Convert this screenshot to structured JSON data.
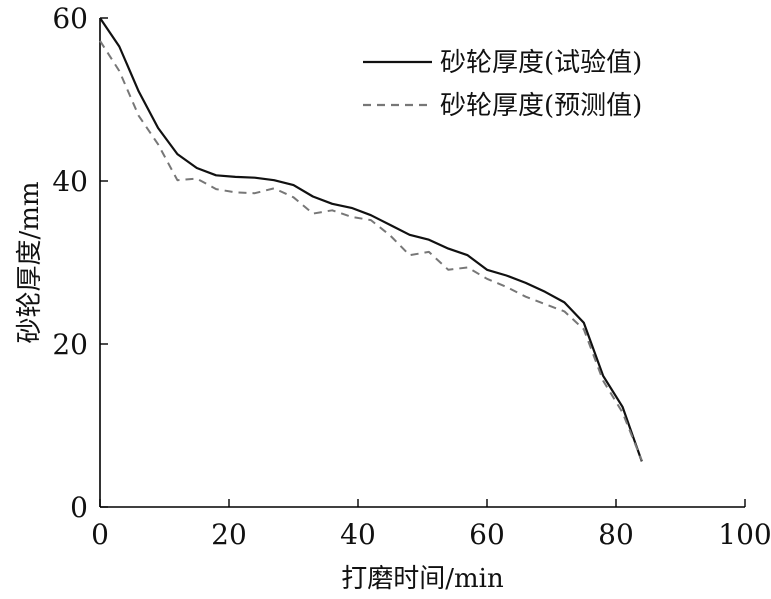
{
  "chart_data": {
    "type": "line",
    "title": "",
    "xlabel": "打磨时间/min",
    "ylabel": "砂轮厚度/mm",
    "xlim": [
      0,
      100
    ],
    "ylim": [
      0,
      60
    ],
    "xticks": [
      0,
      20,
      40,
      60,
      80,
      100
    ],
    "yticks": [
      0,
      20,
      40,
      60
    ],
    "grid": false,
    "legend_position": "top-right",
    "series": [
      {
        "name": "砂轮厚度(试验值)",
        "style": "solid",
        "color": "#111111",
        "x": [
          0,
          3,
          6,
          9,
          12,
          15,
          18,
          21,
          24,
          27,
          30,
          33,
          36,
          39,
          42,
          45,
          48,
          51,
          54,
          57,
          60,
          63,
          66,
          69,
          72,
          75,
          78,
          81,
          84
        ],
        "y": [
          60,
          56.5,
          51,
          46.5,
          43.3,
          41.6,
          40.7,
          40.5,
          40.4,
          40.1,
          39.5,
          38.1,
          37.2,
          36.7,
          35.8,
          34.6,
          33.4,
          32.8,
          31.7,
          30.9,
          29.1,
          28.4,
          27.5,
          26.4,
          25.1,
          22.6,
          16.1,
          12.3,
          5.6
        ]
      },
      {
        "name": "砂轮厚度(预测值)",
        "style": "dashed",
        "color": "#777777",
        "x": [
          0,
          3,
          6,
          9,
          12,
          15,
          18,
          21,
          24,
          27,
          30,
          33,
          36,
          39,
          42,
          45,
          48,
          51,
          54,
          57,
          60,
          63,
          66,
          69,
          72,
          75,
          78,
          81,
          84
        ],
        "y": [
          57.2,
          53.5,
          48,
          44.5,
          40.1,
          40.3,
          39,
          38.6,
          38.5,
          39.1,
          38,
          36,
          36.4,
          35.6,
          35.2,
          33.3,
          30.9,
          31.3,
          29.1,
          29.4,
          28,
          27,
          25.8,
          24.9,
          24,
          21.8,
          15.5,
          11.6,
          5.7
        ]
      }
    ]
  }
}
